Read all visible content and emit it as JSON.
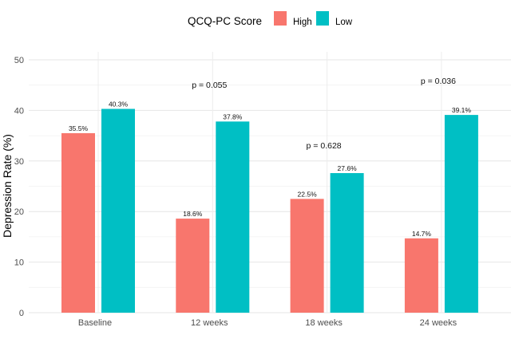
{
  "chart_data": {
    "type": "bar",
    "title": "",
    "xlabel": "",
    "ylabel": "Depression Rate (%)",
    "ylim": [
      0,
      50
    ],
    "yticks": [
      0,
      10,
      20,
      30,
      40,
      50
    ],
    "grid": true,
    "legend": {
      "title": "QCQ-PC Score",
      "placement": "top-center",
      "entries": [
        "High",
        "Low"
      ]
    },
    "categories": [
      "Baseline",
      "12 weeks",
      "18 weeks",
      "24 weeks"
    ],
    "series": [
      {
        "name": "High",
        "color": "#F8766D",
        "values": [
          35.5,
          18.6,
          22.5,
          14.7
        ],
        "labels": [
          "35.5%",
          "18.6%",
          "22.5%",
          "14.7%"
        ]
      },
      {
        "name": "Low",
        "color": "#00BFC4",
        "values": [
          40.3,
          37.8,
          27.6,
          39.1
        ],
        "labels": [
          "40.3%",
          "37.8%",
          "27.6%",
          "39.1%"
        ]
      }
    ],
    "annotations": [
      {
        "category": "12 weeks",
        "text": "p = 0.055",
        "y": 44.5
      },
      {
        "category": "18 weeks",
        "text": "p = 0.628",
        "y": 32.5
      },
      {
        "category": "24 weeks",
        "text": "p = 0.036",
        "y": 45.3
      }
    ]
  }
}
